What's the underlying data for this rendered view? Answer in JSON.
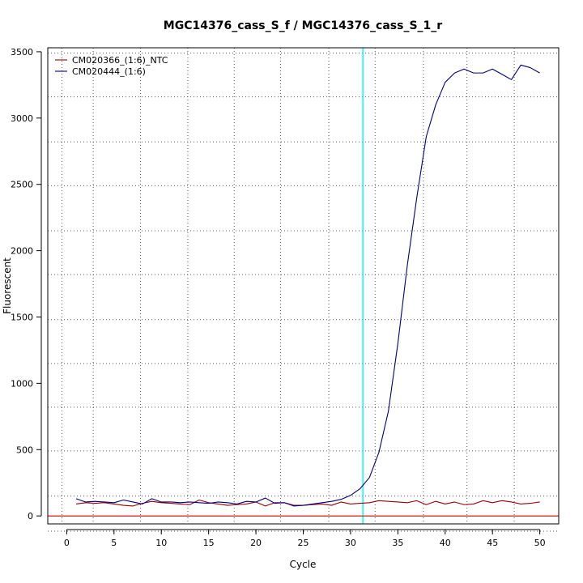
{
  "chart_data": {
    "type": "line",
    "title": "MGC14376_cass_S_f / MGC14376_cass_S_1_r",
    "xlabel": "Cycle",
    "ylabel": "Fluorescent",
    "xlim": [
      -2,
      52
    ],
    "ylim": [
      -60,
      3530
    ],
    "x_ticks": [
      0,
      5,
      10,
      15,
      20,
      25,
      30,
      35,
      40,
      45,
      50
    ],
    "y_ticks": [
      0,
      500,
      1000,
      1500,
      2000,
      2500,
      3000,
      3500
    ],
    "grid": "dotted",
    "grid_x": [
      -0.5,
      2.8,
      7.8,
      12.8,
      17.7,
      22.6,
      27.7,
      32.6,
      37.7,
      42.3,
      47.3
    ],
    "grid_y": [
      -115,
      150,
      490,
      820,
      1150,
      1480,
      1820,
      2150,
      2490,
      2820,
      3160,
      3490
    ],
    "threshold": {
      "x": 31.3,
      "color": "#00ffff"
    },
    "baseline": {
      "y": 0,
      "color": "#cc0000"
    },
    "legend_position": "top-left",
    "x": [
      1,
      2,
      3,
      4,
      5,
      6,
      7,
      8,
      9,
      10,
      11,
      12,
      13,
      14,
      15,
      16,
      17,
      18,
      19,
      20,
      21,
      22,
      23,
      24,
      25,
      26,
      27,
      28,
      29,
      30,
      31,
      32,
      33,
      34,
      35,
      36,
      37,
      38,
      39,
      40,
      41,
      42,
      43,
      44,
      45,
      46,
      47,
      48,
      49,
      50
    ],
    "series": [
      {
        "name": "CM020366_(1:6)_NTC",
        "color": "#990000",
        "values": [
          90,
          100,
          95,
          100,
          90,
          80,
          75,
          95,
          110,
          100,
          95,
          90,
          85,
          120,
          100,
          90,
          80,
          85,
          90,
          105,
          75,
          100,
          100,
          80,
          80,
          85,
          90,
          80,
          105,
          90,
          95,
          100,
          115,
          110,
          105,
          100,
          115,
          85,
          110,
          90,
          105,
          85,
          90,
          115,
          100,
          115,
          105,
          90,
          95,
          105
        ]
      },
      {
        "name": "CM020444_(1:6)",
        "color": "#000080",
        "values": [
          130,
          105,
          110,
          105,
          100,
          120,
          105,
          90,
          130,
          105,
          105,
          100,
          105,
          100,
          95,
          105,
          100,
          90,
          110,
          105,
          135,
          95,
          100,
          75,
          80,
          90,
          100,
          110,
          125,
          155,
          205,
          290,
          480,
          790,
          1300,
          1890,
          2400,
          2860,
          3100,
          3270,
          3340,
          3370,
          3340,
          3340,
          3370,
          3330,
          3290,
          3400,
          3380,
          3340
        ]
      }
    ]
  }
}
